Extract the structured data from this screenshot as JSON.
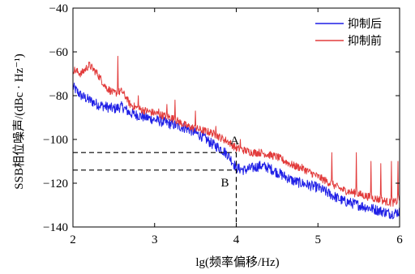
{
  "chart_data": {
    "type": "line",
    "title": "",
    "xlabel": "lg(频率偏移/Hz)",
    "ylabel": "SSB相位噪声/(dBc · Hz⁻¹)",
    "xlim": [
      2,
      6
    ],
    "ylim": [
      -140,
      -40
    ],
    "xticks": [
      "2",
      "3",
      "4",
      "5",
      "6"
    ],
    "yticks": [
      "−40",
      "−60",
      "−80",
      "−100",
      "−120",
      "−140"
    ],
    "legend_position": "top-right",
    "colors": {
      "after": "#1f1fe6",
      "before": "#e23b3b"
    },
    "series": [
      {
        "name": "抑制后",
        "key": "after",
        "points": [
          [
            2.0,
            -76
          ],
          [
            2.1,
            -80
          ],
          [
            2.2,
            -82
          ],
          [
            2.3,
            -84
          ],
          [
            2.4,
            -85
          ],
          [
            2.5,
            -86
          ],
          [
            2.6,
            -85
          ],
          [
            2.7,
            -88
          ],
          [
            2.8,
            -89
          ],
          [
            2.9,
            -90
          ],
          [
            3.0,
            -91
          ],
          [
            3.1,
            -92
          ],
          [
            3.2,
            -93
          ],
          [
            3.3,
            -94
          ],
          [
            3.4,
            -95
          ],
          [
            3.5,
            -97
          ],
          [
            3.6,
            -99
          ],
          [
            3.7,
            -102
          ],
          [
            3.8,
            -104
          ],
          [
            3.9,
            -107
          ],
          [
            4.0,
            -113
          ],
          [
            4.1,
            -114
          ],
          [
            4.2,
            -113
          ],
          [
            4.3,
            -112
          ],
          [
            4.4,
            -113
          ],
          [
            4.5,
            -115
          ],
          [
            4.6,
            -117
          ],
          [
            4.7,
            -119
          ],
          [
            4.8,
            -120
          ],
          [
            4.9,
            -121
          ],
          [
            5.0,
            -122
          ],
          [
            5.1,
            -124
          ],
          [
            5.2,
            -126
          ],
          [
            5.3,
            -128
          ],
          [
            5.4,
            -129
          ],
          [
            5.5,
            -130
          ],
          [
            5.6,
            -131
          ],
          [
            5.7,
            -132
          ],
          [
            5.8,
            -133
          ],
          [
            5.9,
            -134
          ],
          [
            6.0,
            -133
          ]
        ]
      },
      {
        "name": "抑制前",
        "key": "before",
        "points": [
          [
            2.0,
            -68
          ],
          [
            2.1,
            -70
          ],
          [
            2.2,
            -66
          ],
          [
            2.3,
            -70
          ],
          [
            2.4,
            -76
          ],
          [
            2.5,
            -79
          ],
          [
            2.6,
            -78
          ],
          [
            2.7,
            -84
          ],
          [
            2.8,
            -86
          ],
          [
            2.9,
            -87
          ],
          [
            3.0,
            -88
          ],
          [
            3.1,
            -89
          ],
          [
            3.2,
            -90
          ],
          [
            3.3,
            -92
          ],
          [
            3.4,
            -94
          ],
          [
            3.5,
            -95
          ],
          [
            3.6,
            -96
          ],
          [
            3.7,
            -97
          ],
          [
            3.8,
            -99
          ],
          [
            3.9,
            -101
          ],
          [
            4.0,
            -104
          ],
          [
            4.1,
            -105
          ],
          [
            4.2,
            -106
          ],
          [
            4.3,
            -106
          ],
          [
            4.4,
            -107
          ],
          [
            4.5,
            -108
          ],
          [
            4.6,
            -110
          ],
          [
            4.7,
            -112
          ],
          [
            4.8,
            -113
          ],
          [
            4.9,
            -115
          ],
          [
            5.0,
            -117
          ],
          [
            5.1,
            -119
          ],
          [
            5.2,
            -121
          ],
          [
            5.3,
            -123
          ],
          [
            5.4,
            -124
          ],
          [
            5.5,
            -125
          ],
          [
            5.6,
            -126
          ],
          [
            5.7,
            -127
          ],
          [
            5.8,
            -128
          ],
          [
            5.9,
            -129
          ],
          [
            6.0,
            -128
          ]
        ],
        "spurs": [
          [
            2.55,
            -62
          ],
          [
            2.65,
            -84
          ],
          [
            2.8,
            -80
          ],
          [
            3.05,
            -86
          ],
          [
            3.15,
            -84
          ],
          [
            3.25,
            -82
          ],
          [
            3.5,
            -87
          ],
          [
            3.75,
            -94
          ],
          [
            4.05,
            -100
          ],
          [
            5.17,
            -106
          ],
          [
            5.47,
            -106
          ],
          [
            5.65,
            -110
          ],
          [
            5.77,
            -111
          ],
          [
            5.9,
            -110
          ],
          [
            5.98,
            -110
          ]
        ]
      }
    ],
    "annotations": [
      {
        "label": "A",
        "x": 4.0,
        "y": -106
      },
      {
        "label": "B",
        "x": 4.0,
        "y": -114
      }
    ]
  }
}
